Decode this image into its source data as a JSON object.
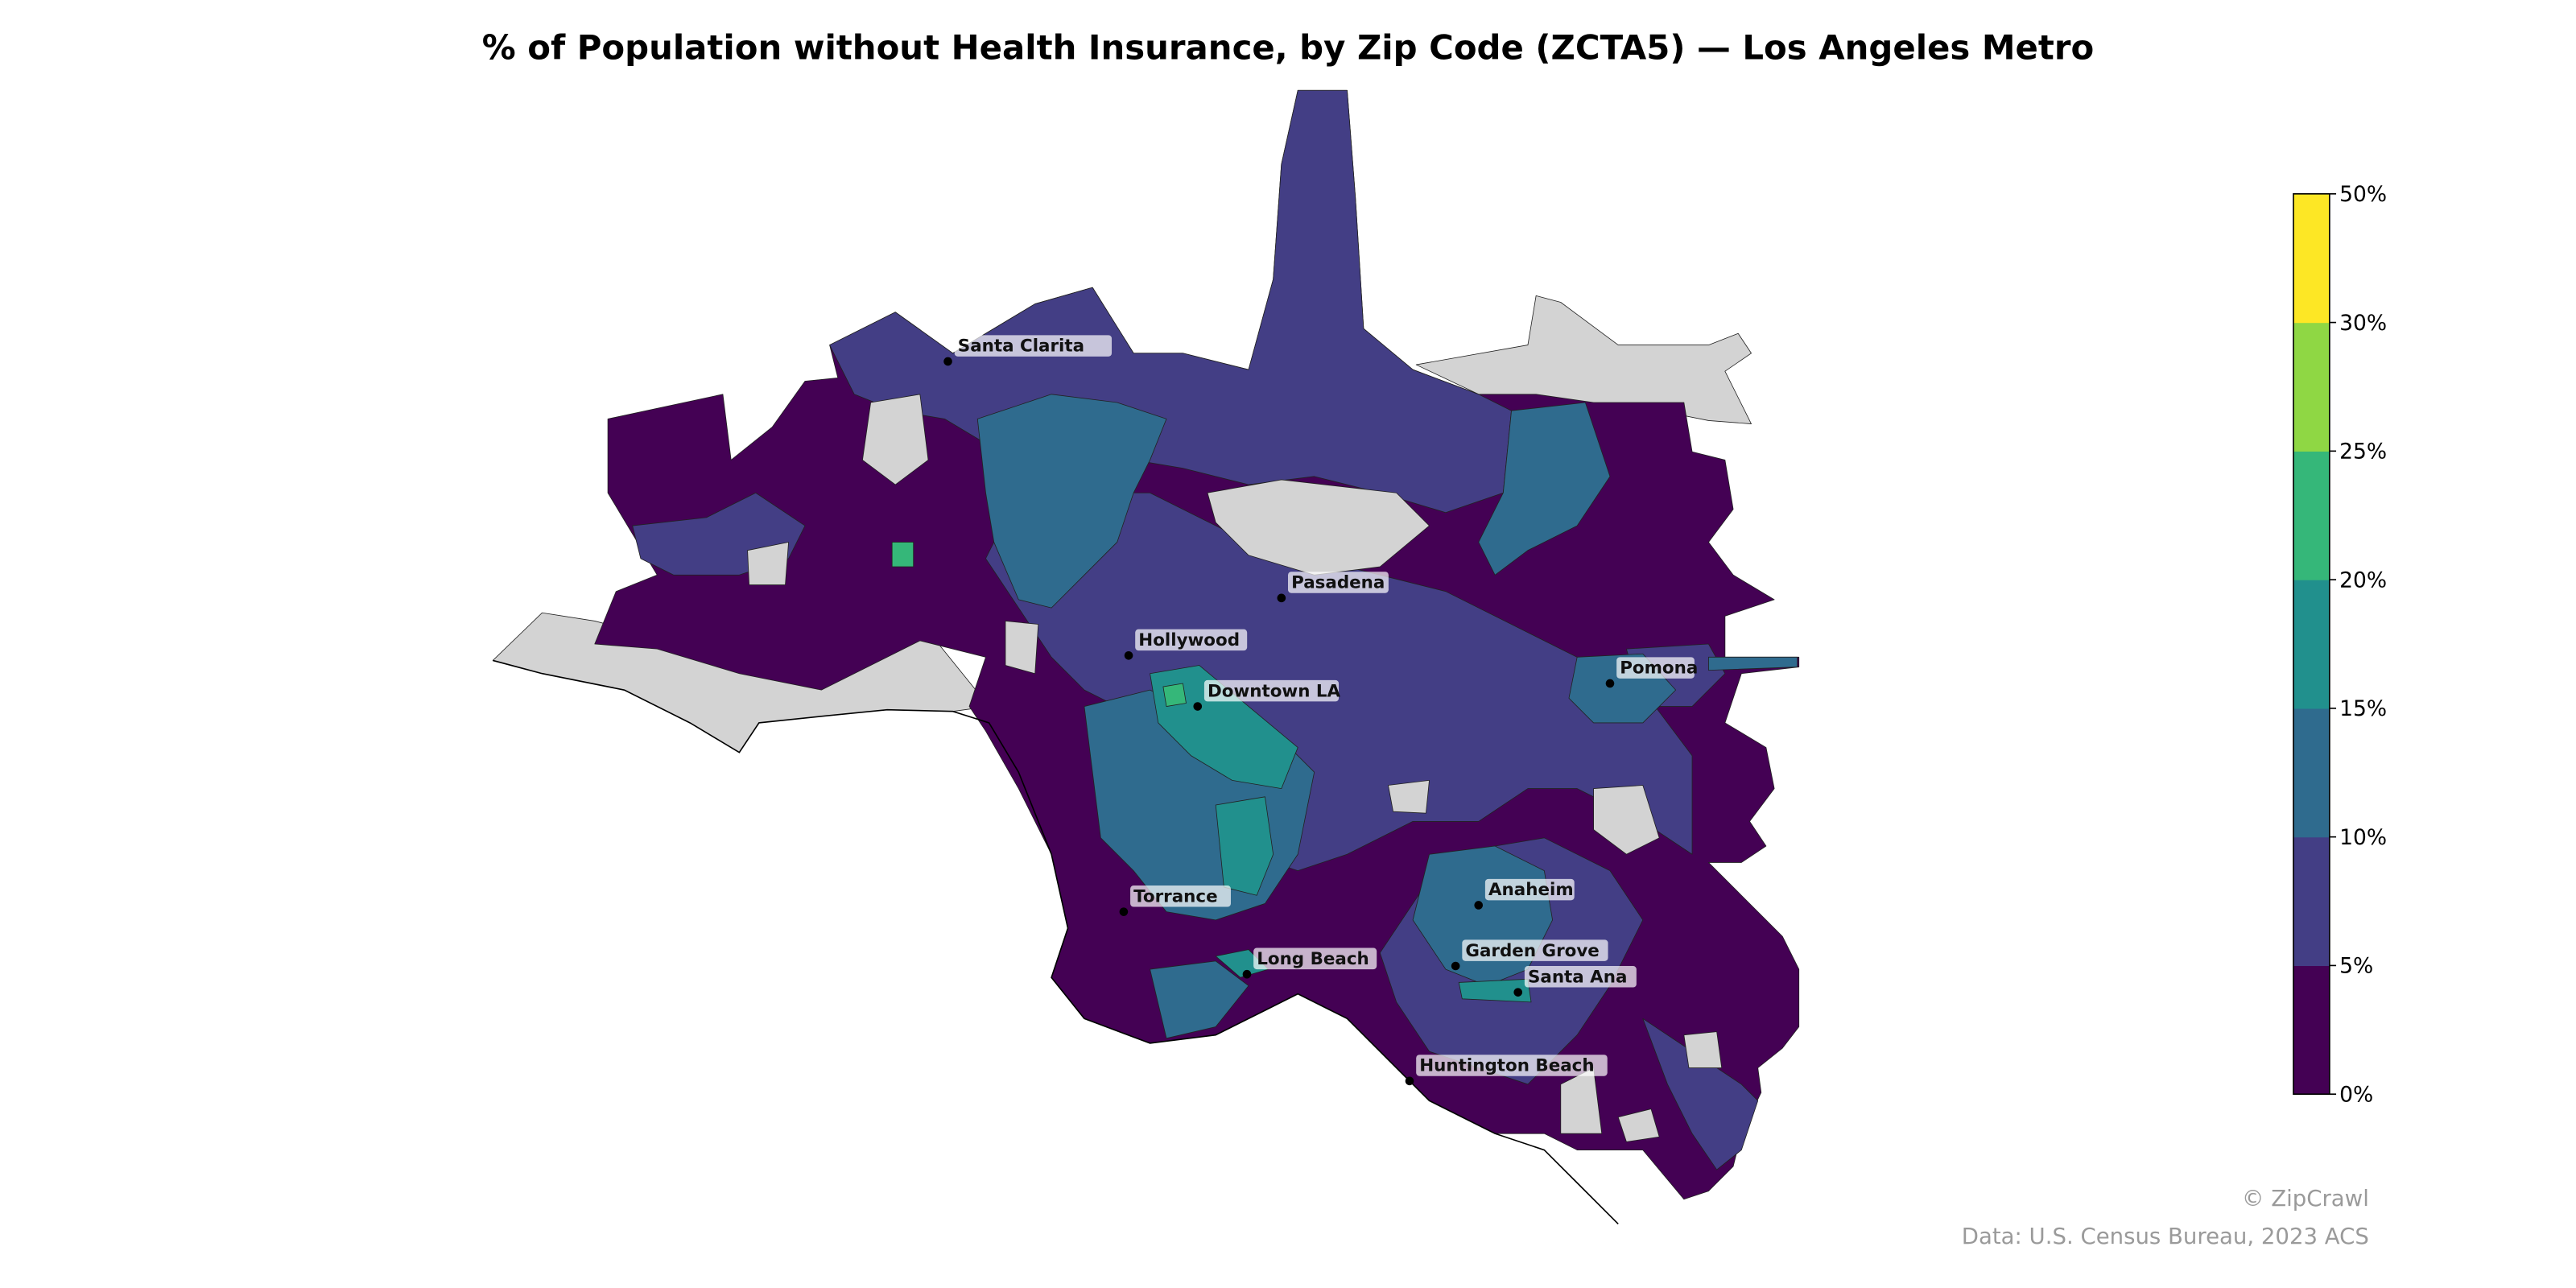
{
  "title": "% of Population without Health Insurance, by Zip Code (ZCTA5) — Los Angeles Metro",
  "credits": {
    "copyright": "© ZipCrawl",
    "source": "Data: U.S. Census Bureau, 2023 ACS"
  },
  "chart_data": {
    "type": "choropleth",
    "title": "% of Population without Health Insurance, by Zip Code (ZCTA5) — Los Angeles Metro",
    "no_data_color": "#d3d3d3",
    "colorbar": {
      "position": "right",
      "bins": [
        {
          "from": 0,
          "to": 5,
          "color": "#440154"
        },
        {
          "from": 5,
          "to": 10,
          "color": "#433e85"
        },
        {
          "from": 10,
          "to": 15,
          "color": "#2f6b8e"
        },
        {
          "from": 15,
          "to": 20,
          "color": "#21908d"
        },
        {
          "from": 20,
          "to": 25,
          "color": "#35b779"
        },
        {
          "from": 25,
          "to": 30,
          "color": "#8fd744"
        },
        {
          "from": 30,
          "to": 50,
          "color": "#fde725"
        }
      ],
      "tick_labels": [
        "0%",
        "5%",
        "10%",
        "15%",
        "20%",
        "25%",
        "30%",
        "50%"
      ]
    },
    "cities": [
      {
        "name": "Santa Clarita"
      },
      {
        "name": "Pasadena"
      },
      {
        "name": "Hollywood"
      },
      {
        "name": "Downtown LA"
      },
      {
        "name": "Pomona"
      },
      {
        "name": "Torrance"
      },
      {
        "name": "Anaheim"
      },
      {
        "name": "Long Beach"
      },
      {
        "name": "Garden Grove"
      },
      {
        "name": "Santa Ana"
      },
      {
        "name": "Huntington Beach"
      }
    ]
  }
}
